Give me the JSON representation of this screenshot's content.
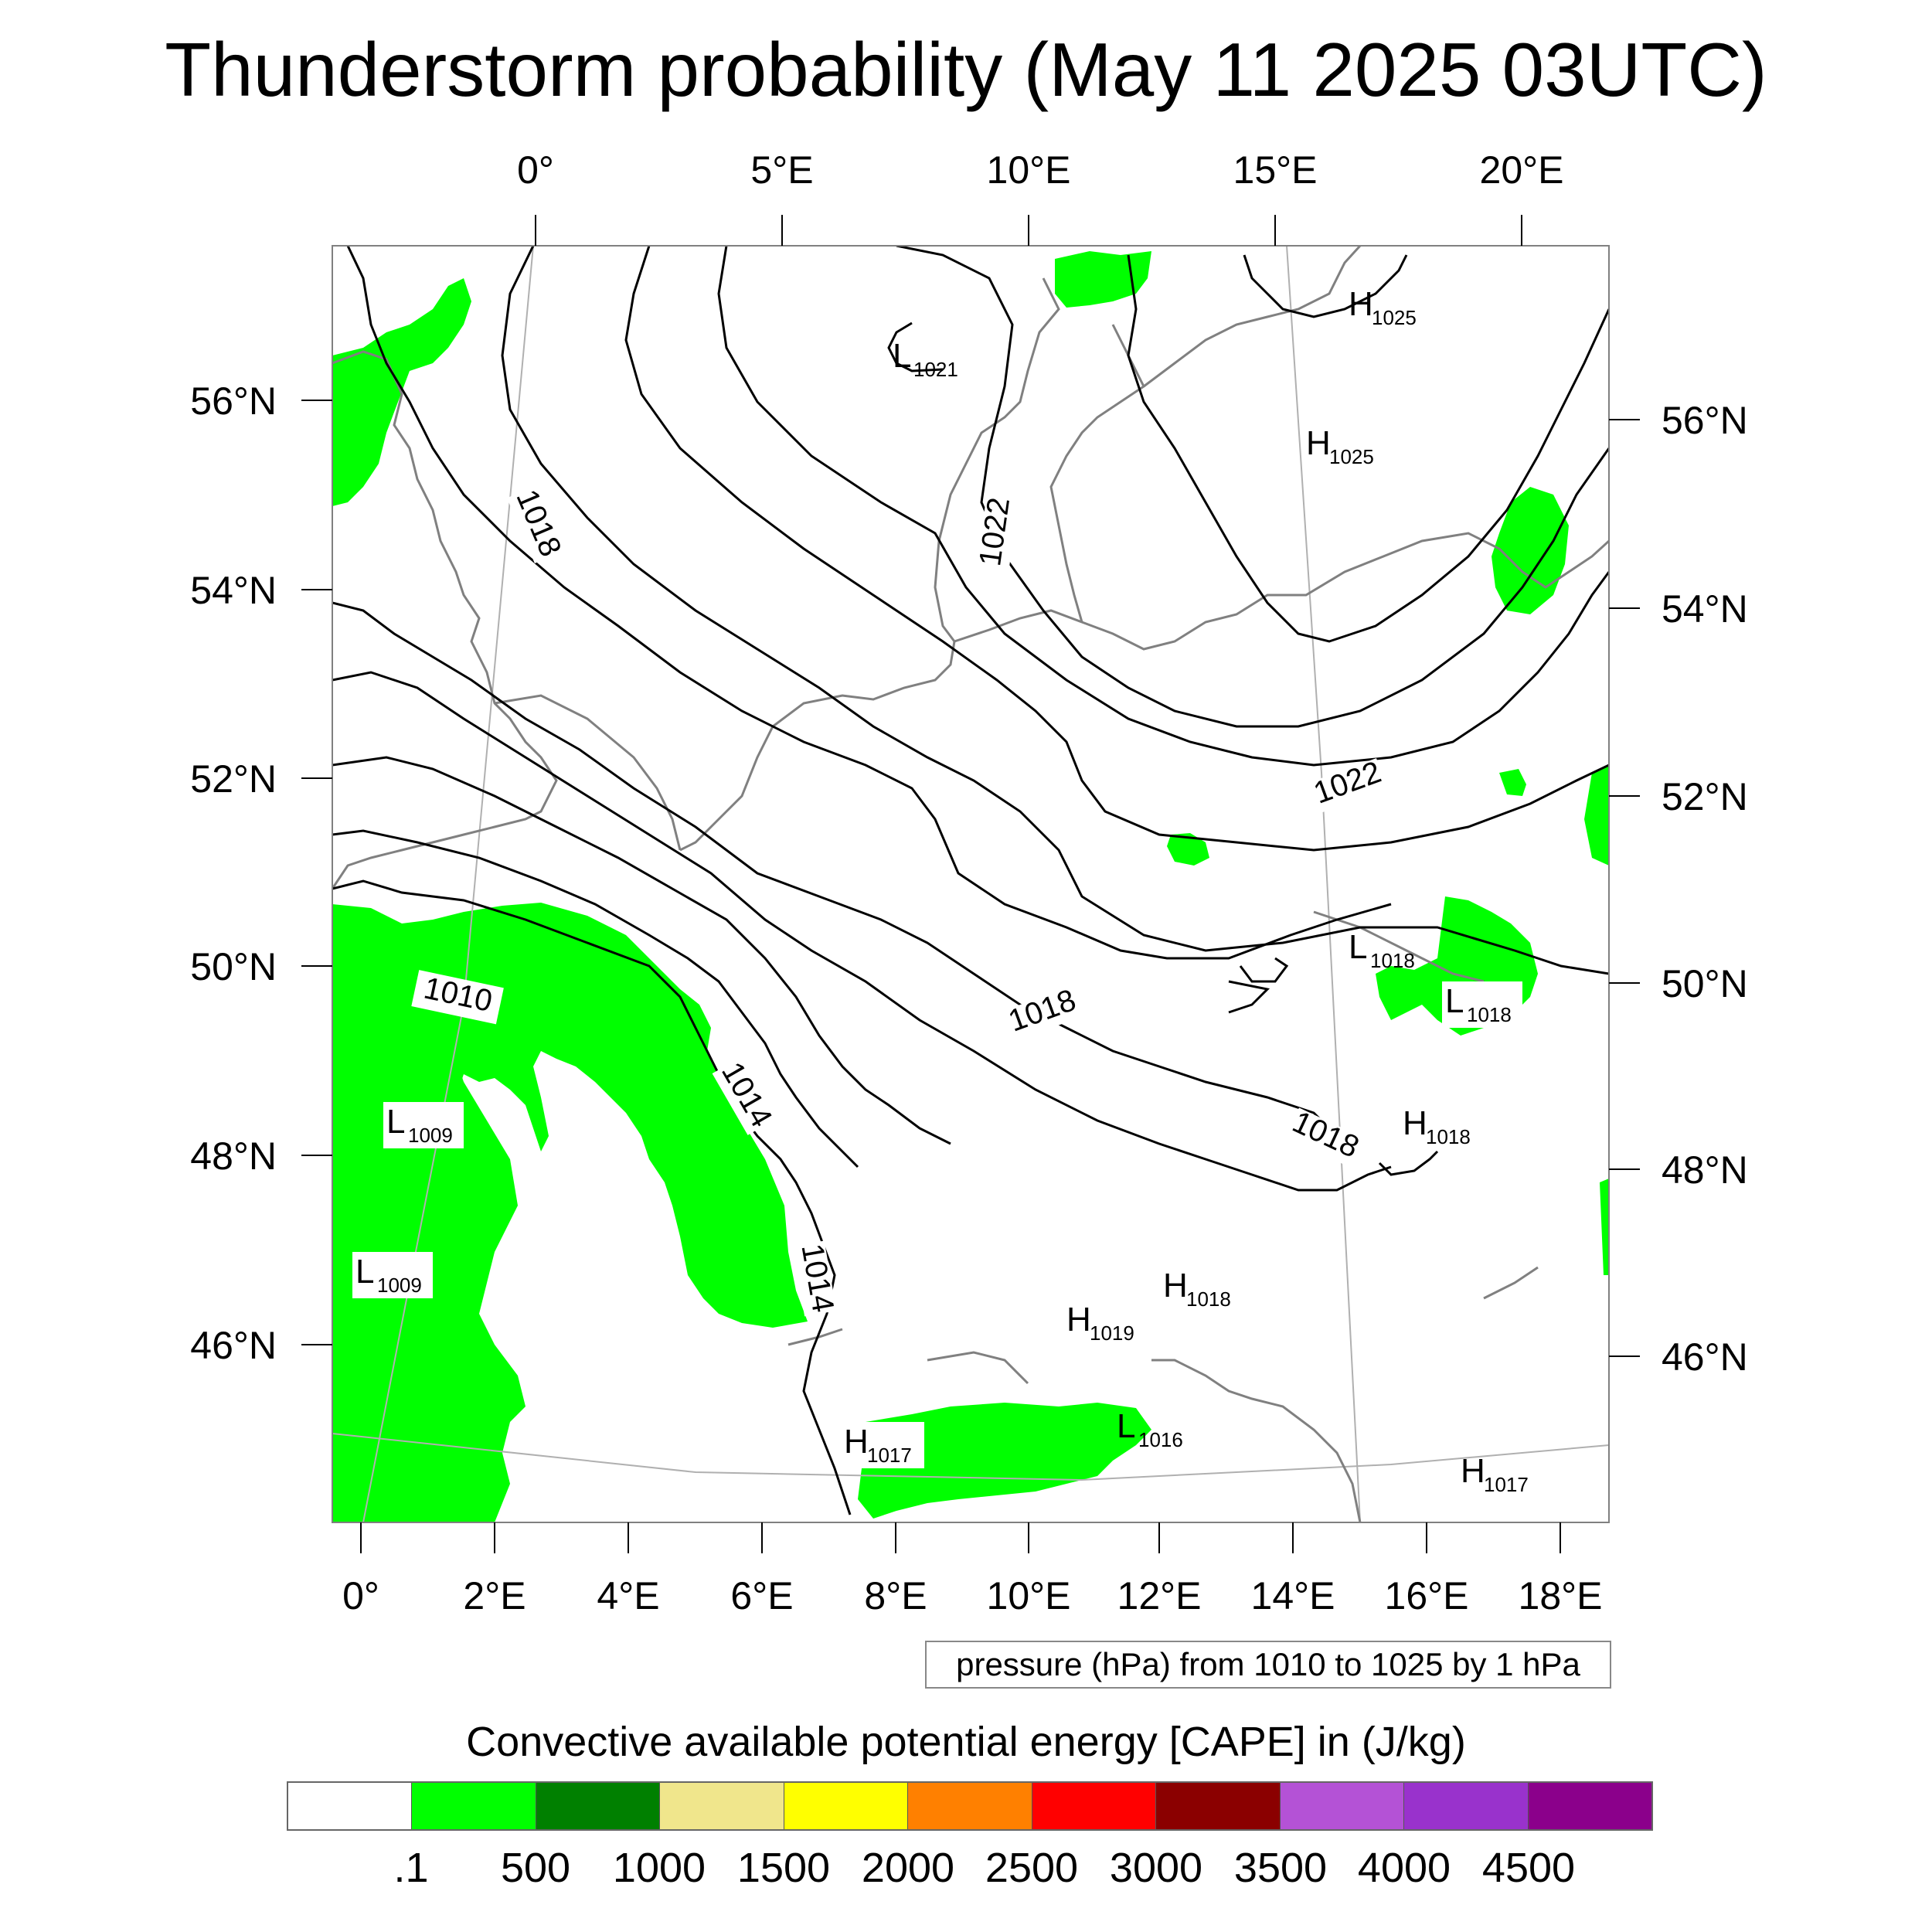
{
  "title": "Thunderstorm probability (May 11 2025 03UTC)",
  "axes": {
    "top_lon_labels": [
      "0°",
      "5°E",
      "10°E",
      "15°E",
      "20°E"
    ],
    "bottom_lon_labels": [
      "0°",
      "2°E",
      "4°E",
      "6°E",
      "8°E",
      "10°E",
      "12°E",
      "14°E",
      "16°E",
      "18°E"
    ],
    "left_lat_labels": [
      "56°N",
      "54°N",
      "52°N",
      "50°N",
      "48°N",
      "46°N"
    ],
    "right_lat_labels": [
      "56°N",
      "54°N",
      "52°N",
      "50°N",
      "48°N",
      "46°N"
    ]
  },
  "pressure_centers": [
    {
      "type": "L",
      "value": "1021"
    },
    {
      "type": "H",
      "value": "1025"
    },
    {
      "type": "H",
      "value": "1025"
    },
    {
      "type": "L",
      "value": "1009"
    },
    {
      "type": "L",
      "value": "1009"
    },
    {
      "type": "L",
      "value": "1018"
    },
    {
      "type": "L",
      "value": "1018"
    },
    {
      "type": "H",
      "value": "1018"
    },
    {
      "type": "H",
      "value": "1018"
    },
    {
      "type": "H",
      "value": "1019"
    },
    {
      "type": "L",
      "value": "1016"
    },
    {
      "type": "H",
      "value": "1017"
    },
    {
      "type": "H",
      "value": "1017"
    }
  ],
  "isobar_labels": [
    "1018",
    "1022",
    "1022",
    "1010",
    "1014",
    "1014",
    "1018",
    "1018"
  ],
  "info_box": "pressure (hPa) from 1010 to 1025 by 1 hPa",
  "legend": {
    "title": "Convective available potential energy [CAPE] in (J/kg)",
    "colors": [
      "#ffffff",
      "#00ff00",
      "#008000",
      "#f0e68c",
      "#ffff00",
      "#ff8000",
      "#ff0000",
      "#8b0000",
      "#b452d6",
      "#9932cc",
      "#8b008b"
    ],
    "labels": [
      ".1",
      "500",
      "1000",
      "1500",
      "2000",
      "2500",
      "3000",
      "3500",
      "4000",
      "4500"
    ]
  },
  "colors": {
    "cape_area": "#00ff00",
    "coastline": "#808080",
    "isobar": "#000000",
    "frame": "#808080"
  }
}
